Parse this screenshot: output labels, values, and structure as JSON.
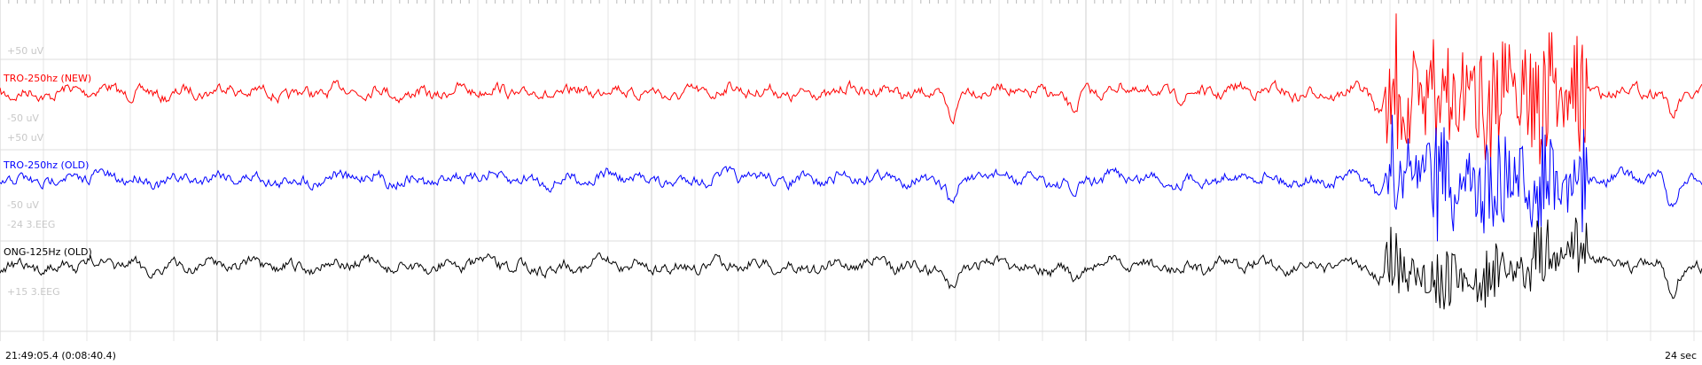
{
  "channels": [
    {
      "name": "TRO-250hz (NEW)",
      "upper": "+50 uV",
      "lower": "-50 uV",
      "color": "#ff0000"
    },
    {
      "name": "TRO-250hz (OLD)",
      "upper": "+50 uV",
      "lower": "-50 uV",
      "color": "#0000ff"
    },
    {
      "name": "ONG-125Hz (OLD)",
      "upper": "-24 3.EEG",
      "lower": "+15 3.EEG",
      "color": "#000000"
    }
  ],
  "footer": {
    "timestamp": "21:49:05.4 (0:08:40.4)",
    "window": "24 sec"
  }
}
